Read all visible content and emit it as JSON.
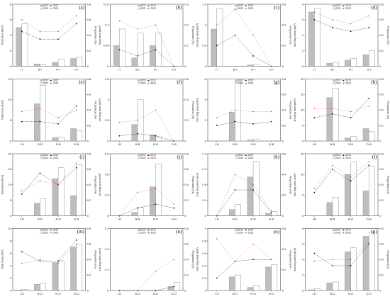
{
  "legend": {
    "bar_2017": "2017",
    "bar_2021": "2021",
    "line_2017": "2017",
    "line_2021": "2021"
  },
  "colors": {
    "bar_2017_fill": "#bdbdbd",
    "bar_2021_fill": "#ffffff",
    "line_2017": "#111111",
    "line_2021": "#e8302f"
  },
  "chart_data": [
    {
      "panel": "(a)",
      "type": "bar",
      "categories": [
        "I-I",
        "B-I",
        "R-I",
        "O-I"
      ],
      "ylabel": "Total area (km²)",
      "y2label": "Proportion (%)",
      "ylim": [
        0,
        8
      ],
      "yticks": [
        0,
        2,
        4,
        6,
        8
      ],
      "y2lim": [
        0,
        0.8
      ],
      "y2ticks": [
        0,
        0.2,
        0.4,
        0.6,
        0.8
      ],
      "series": [
        {
          "name": "2017",
          "kind": "bar",
          "values": [
            5.0,
            0.3,
            0.5,
            1.0
          ]
        },
        {
          "name": "2021",
          "kind": "bar",
          "values": [
            5.5,
            0.2,
            0.9,
            1.2
          ]
        },
        {
          "name": "2017",
          "kind": "line",
          "values": [
            0.45,
            0.35,
            0.35,
            0.55
          ]
        },
        {
          "name": "2021",
          "kind": "line",
          "values": [
            0.6,
            0.45,
            0.45,
            0.65
          ]
        }
      ]
    },
    {
      "panel": "(b)",
      "type": "bar",
      "categories": [
        "I-I",
        "B-I",
        "R-I",
        "O-I"
      ],
      "ylabel": "Total area (km²)",
      "y2label": "Proportion (%)",
      "ylim": [
        0,
        0.15
      ],
      "yticks": [
        0,
        0.05,
        0.1,
        0.15
      ],
      "y2lim": [
        0,
        0.3
      ],
      "y2ticks": [
        0,
        0.1,
        0.2,
        0.3
      ],
      "series": [
        {
          "name": "2017",
          "kind": "bar",
          "values": [
            0.05,
            0.02,
            0.05,
            0
          ]
        },
        {
          "name": "2021",
          "kind": "bar",
          "values": [
            0.09,
            0.08,
            0.08,
            0
          ]
        },
        {
          "name": "2017",
          "kind": "line",
          "values": [
            0.08,
            0.05,
            0.08,
            0
          ]
        },
        {
          "name": "2021",
          "kind": "line",
          "values": [
            0.22,
            0.18,
            0.2,
            0
          ]
        }
      ]
    },
    {
      "panel": "(c)",
      "type": "bar",
      "categories": [
        "I-I",
        "B-I",
        "R-I",
        "O-I"
      ],
      "ylabel": "2nd ring area (km²)",
      "y2label": "Proportion (%)",
      "ylim": [
        0,
        1.5
      ],
      "yticks": [
        0,
        0.5,
        1.0,
        1.5
      ],
      "y2lim": [
        0,
        0.6
      ],
      "y2ticks": [
        0,
        0.2,
        0.4,
        0.6
      ],
      "series": [
        {
          "name": "2017",
          "kind": "bar",
          "values": [
            0.9,
            0,
            0.03,
            0
          ]
        },
        {
          "name": "2021",
          "kind": "bar",
          "values": [
            1.4,
            0,
            0.05,
            0
          ]
        },
        {
          "name": "2017",
          "kind": "line",
          "values": [
            0.2,
            0.3,
            0.1,
            0
          ]
        },
        {
          "name": "2021",
          "kind": "line",
          "values": [
            0.4,
            0.55,
            0.3,
            0
          ]
        }
      ]
    },
    {
      "panel": "(d)",
      "type": "bar",
      "categories": [
        "I-I",
        "B-I",
        "R-I",
        "O-I"
      ],
      "ylabel": "3rd ring area (km²)",
      "y2label": "Proportion (%)",
      "ylim": [
        0,
        8
      ],
      "yticks": [
        0,
        2,
        4,
        6,
        8
      ],
      "y2lim": [
        0,
        0.8
      ],
      "y2ticks": [
        0,
        0.2,
        0.4,
        0.6,
        0.8
      ],
      "series": [
        {
          "name": "2017",
          "kind": "bar",
          "values": [
            7.0,
            0.4,
            0.8,
            1.5
          ]
        },
        {
          "name": "2021",
          "kind": "bar",
          "values": [
            7.5,
            0.5,
            1.0,
            2.0
          ]
        },
        {
          "name": "2017",
          "kind": "line",
          "values": [
            0.6,
            0.5,
            0.45,
            0.5
          ]
        },
        {
          "name": "2021",
          "kind": "line",
          "values": [
            0.7,
            0.6,
            0.55,
            0.65
          ]
        }
      ]
    },
    {
      "panel": "(e)",
      "type": "bar",
      "categories": [
        "I-B",
        "B-B",
        "R-B",
        "O-B"
      ],
      "ylabel": "Total area (km²)",
      "y2label": "Proportion (%)",
      "ylim": [
        0,
        15
      ],
      "yticks": [
        0,
        5,
        10,
        15
      ],
      "y2lim": [
        0,
        0.8
      ],
      "y2ticks": [
        0,
        0.2,
        0.4,
        0.6,
        0.8
      ],
      "series": [
        {
          "name": "2017",
          "kind": "bar",
          "values": [
            0,
            9.0,
            0.8,
            3.0
          ]
        },
        {
          "name": "2021",
          "kind": "bar",
          "values": [
            0,
            13.5,
            0.9,
            2.5
          ]
        },
        {
          "name": "2017",
          "kind": "line",
          "values": [
            0.25,
            0.25,
            0.22,
            0.45
          ]
        },
        {
          "name": "2021",
          "kind": "line",
          "values": [
            0.38,
            0.42,
            0.3,
            0.4
          ]
        }
      ]
    },
    {
      "panel": "(f)",
      "type": "bar",
      "categories": [
        "I-B",
        "B-B",
        "R-B",
        "O-B"
      ],
      "ylabel": "1st ring area (km²)",
      "y2label": "Proportion (%)",
      "ylim": [
        0,
        1.5
      ],
      "yticks": [
        0,
        0.5,
        1.0,
        1.5
      ],
      "y2lim": [
        0,
        0.6
      ],
      "y2ticks": [
        0,
        0.2,
        0.4,
        0.6
      ],
      "series": [
        {
          "name": "2017",
          "kind": "bar",
          "values": [
            0,
            0.4,
            0.15,
            0
          ]
        },
        {
          "name": "2021",
          "kind": "bar",
          "values": [
            0,
            1.0,
            0.1,
            0
          ]
        },
        {
          "name": "2017",
          "kind": "line",
          "values": [
            0.05,
            0.07,
            0.05,
            0
          ]
        },
        {
          "name": "2021",
          "kind": "line",
          "values": [
            0.18,
            0.2,
            0.3,
            0
          ]
        }
      ]
    },
    {
      "panel": "(g)",
      "type": "bar",
      "categories": [
        "I-B",
        "B-B",
        "R-B",
        "O-B"
      ],
      "ylabel": "2nd ring area (km²)",
      "y2label": "Proportion (%)",
      "ylim": [
        0,
        6
      ],
      "yticks": [
        0,
        2,
        4,
        6
      ],
      "y2lim": [
        0,
        0.8
      ],
      "y2ticks": [
        0,
        0.2,
        0.4,
        0.6,
        0.8
      ],
      "series": [
        {
          "name": "2017",
          "kind": "bar",
          "values": [
            0,
            2.8,
            0.1,
            0
          ]
        },
        {
          "name": "2021",
          "kind": "bar",
          "values": [
            0,
            5.8,
            0.15,
            0
          ]
        },
        {
          "name": "2017",
          "kind": "line",
          "values": [
            0.2,
            0.25,
            0.22,
            0.25
          ]
        },
        {
          "name": "2021",
          "kind": "line",
          "values": [
            0.3,
            0.4,
            0.38,
            0.38
          ]
        }
      ]
    },
    {
      "panel": "(h)",
      "type": "bar",
      "categories": [
        "I-B",
        "B-B",
        "R-B",
        "O-B"
      ],
      "ylabel": "3rd ring area (km²)",
      "y2label": "Proportion (%)",
      "ylim": [
        0,
        20
      ],
      "yticks": [
        0,
        5,
        10,
        15,
        20
      ],
      "y2lim": [
        0,
        0.8
      ],
      "y2ticks": [
        0,
        0.2,
        0.4,
        0.6,
        0.8
      ],
      "series": [
        {
          "name": "2017",
          "kind": "bar",
          "values": [
            0,
            14.0,
            1.0,
            4.0
          ]
        },
        {
          "name": "2021",
          "kind": "bar",
          "values": [
            0,
            17.0,
            1.5,
            3.0
          ]
        },
        {
          "name": "2017",
          "kind": "line",
          "values": [
            0.3,
            0.35,
            0.3,
            0.55
          ]
        },
        {
          "name": "2021",
          "kind": "line",
          "values": [
            0.42,
            0.42,
            0.38,
            0.45
          ]
        }
      ]
    },
    {
      "panel": "(i)",
      "type": "bar",
      "categories": [
        "I-R",
        "B-R",
        "R-R",
        "O-R"
      ],
      "ylabel": "Total area (km²)",
      "y2label": "Proportion (%)",
      "ylim": [
        0,
        20
      ],
      "yticks": [
        0,
        5,
        10,
        15,
        20
      ],
      "y2lim": [
        0,
        0.8
      ],
      "y2ticks": [
        0,
        0.2,
        0.4,
        0.6,
        0.8
      ],
      "series": [
        {
          "name": "2017",
          "kind": "bar",
          "values": [
            0,
            4.0,
            12.0,
            6.5
          ]
        },
        {
          "name": "2021",
          "kind": "bar",
          "values": [
            0,
            5.5,
            15.5,
            16.5
          ]
        },
        {
          "name": "2017",
          "kind": "line",
          "values": [
            0.28,
            0.55,
            0.4,
            0.62
          ]
        },
        {
          "name": "2021",
          "kind": "line",
          "values": [
            0.32,
            0.45,
            0.4,
            0.68
          ]
        }
      ]
    },
    {
      "panel": "(j)",
      "type": "bar",
      "categories": [
        "I-R",
        "B-R",
        "R-R",
        "O-R"
      ],
      "ylabel": "1st ring area (km²)",
      "y2label": "Proportion (%)",
      "ylim": [
        0,
        0.9
      ],
      "yticks": [
        0,
        0.3,
        0.6,
        0.9
      ],
      "y2lim": [
        0,
        0.8
      ],
      "y2ticks": [
        0,
        0.2,
        0.4,
        0.6,
        0.8
      ],
      "series": [
        {
          "name": "2017",
          "kind": "bar",
          "values": [
            0,
            0.05,
            0.42,
            0
          ]
        },
        {
          "name": "2021",
          "kind": "bar",
          "values": [
            0,
            0.12,
            0.75,
            0
          ]
        },
        {
          "name": "2017",
          "kind": "line",
          "values": [
            0,
            0.1,
            0.15,
            0.1
          ]
        },
        {
          "name": "2021",
          "kind": "line",
          "values": [
            0,
            0.3,
            0.35,
            0.15
          ]
        }
      ]
    },
    {
      "panel": "(k)",
      "type": "bar",
      "categories": [
        "I-R",
        "B-R",
        "R-R",
        "O-R"
      ],
      "ylabel": "2nd ring area (km²)",
      "y2label": "Proportion (%)",
      "ylim": [
        0,
        1.2
      ],
      "yticks": [
        0,
        0.3,
        0.6,
        0.9,
        1.2
      ],
      "y2lim": [
        0,
        0.6
      ],
      "y2ticks": [
        0,
        0.2,
        0.4,
        0.6
      ],
      "series": [
        {
          "name": "2017",
          "kind": "bar",
          "values": [
            0,
            0.12,
            0.75,
            0.05
          ]
        },
        {
          "name": "2021",
          "kind": "bar",
          "values": [
            0,
            0.22,
            1.05,
            0.08
          ]
        },
        {
          "name": "2017",
          "kind": "line",
          "values": [
            0,
            0.25,
            0.25,
            0.03
          ]
        },
        {
          "name": "2021",
          "kind": "line",
          "values": [
            0,
            0.4,
            0.3,
            0.05
          ]
        }
      ]
    },
    {
      "panel": "(l)",
      "type": "bar",
      "categories": [
        "I-R",
        "B-R",
        "R-R",
        "O-R"
      ],
      "ylabel": "3rd ring area (km²)",
      "y2label": "Proportion (%)",
      "ylim": [
        0,
        15
      ],
      "yticks": [
        0,
        5,
        10,
        15
      ],
      "y2lim": [
        0,
        0.8
      ],
      "y2ticks": [
        0,
        0.2,
        0.4,
        0.6,
        0.8
      ],
      "series": [
        {
          "name": "2017",
          "kind": "bar",
          "values": [
            0,
            3.2,
            10.0,
            6.0
          ]
        },
        {
          "name": "2021",
          "kind": "bar",
          "values": [
            0,
            4.5,
            13.0,
            12.0
          ]
        },
        {
          "name": "2017",
          "kind": "line",
          "values": [
            0.3,
            0.6,
            0.45,
            0.65
          ]
        },
        {
          "name": "2021",
          "kind": "line",
          "values": [
            0.35,
            0.65,
            0.5,
            0.7
          ]
        }
      ]
    },
    {
      "panel": "(m)",
      "type": "bar",
      "categories": [
        "I-O",
        "B-O",
        "R-O",
        "O-O"
      ],
      "ylabel": "Total area (km²)",
      "y2label": "Proportion (%)",
      "ylim": [
        0,
        10
      ],
      "yticks": [
        0,
        2,
        4,
        6,
        8,
        10
      ],
      "y2lim": [
        0,
        0.8
      ],
      "y2ticks": [
        0,
        0.2,
        0.4,
        0.6,
        0.8
      ],
      "series": [
        {
          "name": "2017",
          "kind": "bar",
          "values": [
            0.1,
            1.0,
            4.5,
            7.0
          ]
        },
        {
          "name": "2021",
          "kind": "bar",
          "values": [
            0.2,
            1.2,
            4.8,
            7.5
          ]
        },
        {
          "name": "2017",
          "kind": "line",
          "values": [
            0.5,
            0.38,
            0.38,
            0.65
          ]
        },
        {
          "name": "2021",
          "kind": "line",
          "values": [
            0.35,
            0.4,
            0.35,
            0.6
          ]
        }
      ]
    },
    {
      "panel": "(n)",
      "type": "bar",
      "categories": [
        "I-O",
        "B-O",
        "R-O",
        "O-O"
      ],
      "ylabel": "1st ring area (km²)",
      "y2label": "Proportion (%)",
      "ylim": [
        0,
        0.3
      ],
      "yticks": [
        0,
        0.1,
        0.2,
        0.3
      ],
      "y2lim": [
        0,
        0.8
      ],
      "y2ticks": [
        0,
        0.2,
        0.4,
        0.6,
        0.8
      ],
      "series": [
        {
          "name": "2017",
          "kind": "bar",
          "values": [
            0,
            0,
            0,
            0.02
          ]
        },
        {
          "name": "2021",
          "kind": "bar",
          "values": [
            0,
            0,
            0,
            0.04
          ]
        },
        {
          "name": "2017",
          "kind": "line",
          "values": [
            0,
            0,
            0,
            0.05
          ]
        },
        {
          "name": "2021",
          "kind": "line",
          "values": [
            0,
            0,
            0.25,
            0.4
          ]
        }
      ]
    },
    {
      "panel": "(o)",
      "type": "bar",
      "categories": [
        "I-O",
        "B-O",
        "R-O",
        "O-O"
      ],
      "ylabel": "2nd ring area (km²)",
      "y2label": "Proportion (%)",
      "ylim": [
        0,
        1.0
      ],
      "yticks": [
        0,
        0.2,
        0.4,
        0.6,
        0.8,
        1.0
      ],
      "y2lim": [
        0,
        0.6
      ],
      "y2ticks": [
        0,
        0.2,
        0.4,
        0.6
      ],
      "series": [
        {
          "name": "2017",
          "kind": "bar",
          "values": [
            0,
            0.22,
            0.05,
            0.38
          ]
        },
        {
          "name": "2021",
          "kind": "bar",
          "values": [
            0,
            0.25,
            0.08,
            0.42
          ]
        },
        {
          "name": "2017",
          "kind": "line",
          "values": [
            0.12,
            0.28,
            0.3,
            0.3
          ]
        },
        {
          "name": "2021",
          "kind": "line",
          "values": [
            0.5,
            0.28,
            0.45,
            0.3
          ]
        }
      ]
    },
    {
      "panel": "(p)",
      "type": "bar",
      "categories": [
        "I-O",
        "B-O",
        "R-O",
        "O-O"
      ],
      "ylabel": "3rd ring area (km²)",
      "y2label": "Proportion (%)",
      "ylim": [
        0,
        8
      ],
      "yticks": [
        0,
        2,
        4,
        6,
        8
      ],
      "y2lim": [
        0,
        0.8
      ],
      "y2ticks": [
        0,
        0.2,
        0.4,
        0.6,
        0.8
      ],
      "series": [
        {
          "name": "2017",
          "kind": "bar",
          "values": [
            0.1,
            1.0,
            5.0,
            7.0
          ]
        },
        {
          "name": "2021",
          "kind": "bar",
          "values": [
            0.2,
            1.1,
            5.5,
            7.5
          ]
        },
        {
          "name": "2017",
          "kind": "line",
          "values": [
            0.48,
            0.32,
            0.32,
            0.6
          ]
        },
        {
          "name": "2021",
          "kind": "line",
          "values": [
            0.38,
            0.4,
            0.4,
            0.62
          ]
        }
      ]
    }
  ]
}
